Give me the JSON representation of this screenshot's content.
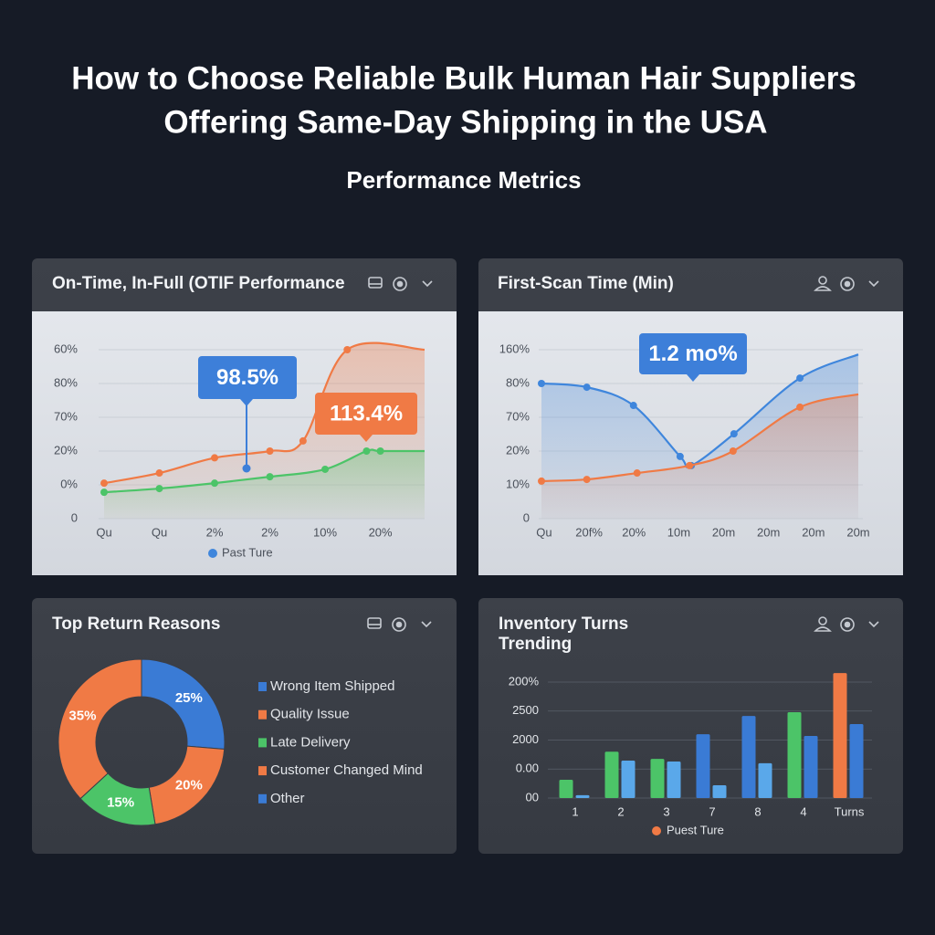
{
  "header": {
    "title": [
      "How to Choose Reliable Bulk Human Hair Suppliers",
      "Offering Same-Day Shipping in the USA"
    ],
    "subtitle": "Performance Metrics"
  },
  "chart_data": [
    {
      "type": "line",
      "title": "On-Time, In-Full (OTIF Performance",
      "xlim": [
        0,
        5.8
      ],
      "xticks": [
        {
          "value": 0,
          "label": "Qu"
        },
        {
          "value": 1,
          "label": "Qu"
        },
        {
          "value": 2,
          "label": "2%"
        },
        {
          "value": 3,
          "label": "2%"
        },
        {
          "value": 4,
          "label": "10%"
        },
        {
          "value": 5,
          "label": "20%"
        }
      ],
      "ylim": [
        0,
        5
      ],
      "yticks": [
        {
          "value": 0,
          "label": "0"
        },
        {
          "value": 1,
          "label": "0%"
        },
        {
          "value": 2,
          "label": "20%"
        },
        {
          "value": 3,
          "label": "70%"
        },
        {
          "value": 4,
          "label": "80%"
        },
        {
          "value": 5,
          "label": "60%"
        }
      ],
      "grid": true,
      "series": [
        {
          "color": "#f07a45",
          "x": [
            0,
            1,
            2,
            3,
            3.6,
            4.4,
            5.8
          ],
          "values": [
            1.05,
            1.35,
            1.8,
            2.0,
            2.3,
            5.0,
            5.0
          ]
        },
        {
          "color": "#4cc468",
          "x": [
            0,
            1,
            2,
            3,
            4,
            4.75,
            5,
            5.8
          ],
          "values": [
            0.78,
            0.89,
            1.05,
            1.24,
            1.46,
            2.0,
            2.0,
            2.0
          ]
        }
      ],
      "annotations": [
        {
          "text": "98.5%",
          "color": "#3d7fd9"
        },
        {
          "text": "113.4%",
          "color": "#f07a45"
        }
      ],
      "legend": {
        "label": "Past Ture",
        "color": "#3f86dc"
      }
    },
    {
      "type": "line",
      "title": "First-Scan Time (Min)",
      "xlim": [
        -0.06,
        7
      ],
      "xticks": [
        {
          "value": 0,
          "label": "Qu"
        },
        {
          "value": 1,
          "label": "20f%"
        },
        {
          "value": 2,
          "label": "20%"
        },
        {
          "value": 3,
          "label": "10m"
        },
        {
          "value": 4,
          "label": "20m"
        },
        {
          "value": 5,
          "label": "20m"
        },
        {
          "value": 6,
          "label": "20m"
        },
        {
          "value": 7,
          "label": "20m"
        }
      ],
      "ylim": [
        0,
        5
      ],
      "yticks": [
        {
          "value": 0,
          "label": "0"
        },
        {
          "value": 1,
          "label": "10%"
        },
        {
          "value": 2,
          "label": "20%"
        },
        {
          "value": 3,
          "label": "70%"
        },
        {
          "value": 4,
          "label": "80%"
        },
        {
          "value": 5,
          "label": "160%"
        }
      ],
      "grid": true,
      "series": [
        {
          "color": "#3f86dc",
          "x": [
            -0.06,
            0.95,
            1.99,
            3.03,
            3.28,
            4.23,
            5.7,
            7
          ],
          "values": [
            4.0,
            3.89,
            3.35,
            1.84,
            1.57,
            2.51,
            4.16,
            4.86
          ]
        },
        {
          "color": "#f07a45",
          "x": [
            -0.06,
            0.95,
            2.07,
            3.24,
            4.21,
            5.7,
            7
          ],
          "values": [
            1.11,
            1.16,
            1.35,
            1.57,
            2.0,
            3.3,
            3.68
          ]
        }
      ],
      "annotations": [
        {
          "text": "1.2 mo%",
          "color": "#3d7fd9"
        }
      ]
    },
    {
      "type": "pie",
      "title": "Top Return Reasons",
      "categories": [
        "Wrong Item Shipped",
        "Quality Issue",
        "Late Delivery",
        "Customer Changed Mind",
        "Other"
      ],
      "values": [
        25,
        20,
        15,
        35,
        null
      ],
      "value_labels": [
        "25%",
        "20%",
        "15%",
        "35%",
        null
      ],
      "colors": [
        "#3a7bd5",
        "#f07a45",
        "#4cc468",
        "#f07a45",
        "#3a7bd5"
      ]
    },
    {
      "type": "bar",
      "title": [
        "Inventory Turns",
        "Trending"
      ],
      "categories": [
        "1",
        "2",
        "3",
        "7",
        "8",
        "4",
        "Turns"
      ],
      "ylim": [
        0,
        4
      ],
      "yticks": [
        {
          "value": 0,
          "label": "00"
        },
        {
          "value": 1,
          "label": "0.00"
        },
        {
          "value": 2,
          "label": "2000"
        },
        {
          "value": 3,
          "label": "2500"
        },
        {
          "value": 4,
          "label": "200%"
        }
      ],
      "grid": true,
      "series": [
        {
          "values": [
            0.63,
            1.6,
            1.35,
            2.2,
            2.83,
            2.96,
            4.31
          ],
          "colors": [
            "#4cc468",
            "#4cc468",
            "#4cc468",
            "#3a7bd5",
            "#3a7bd5",
            "#4cc468",
            "#f07a45"
          ]
        },
        {
          "values": [
            0.1,
            1.29,
            1.26,
            0.44,
            1.2,
            2.14,
            2.55
          ],
          "colors": [
            "#5aa8ea",
            "#5aa8ea",
            "#5aa8ea",
            "#5aa8ea",
            "#5aa8ea",
            "#3a7bd5",
            "#3a7bd5"
          ]
        }
      ],
      "legend": {
        "label": "Puest Ture",
        "color": "#f07a45"
      }
    }
  ]
}
